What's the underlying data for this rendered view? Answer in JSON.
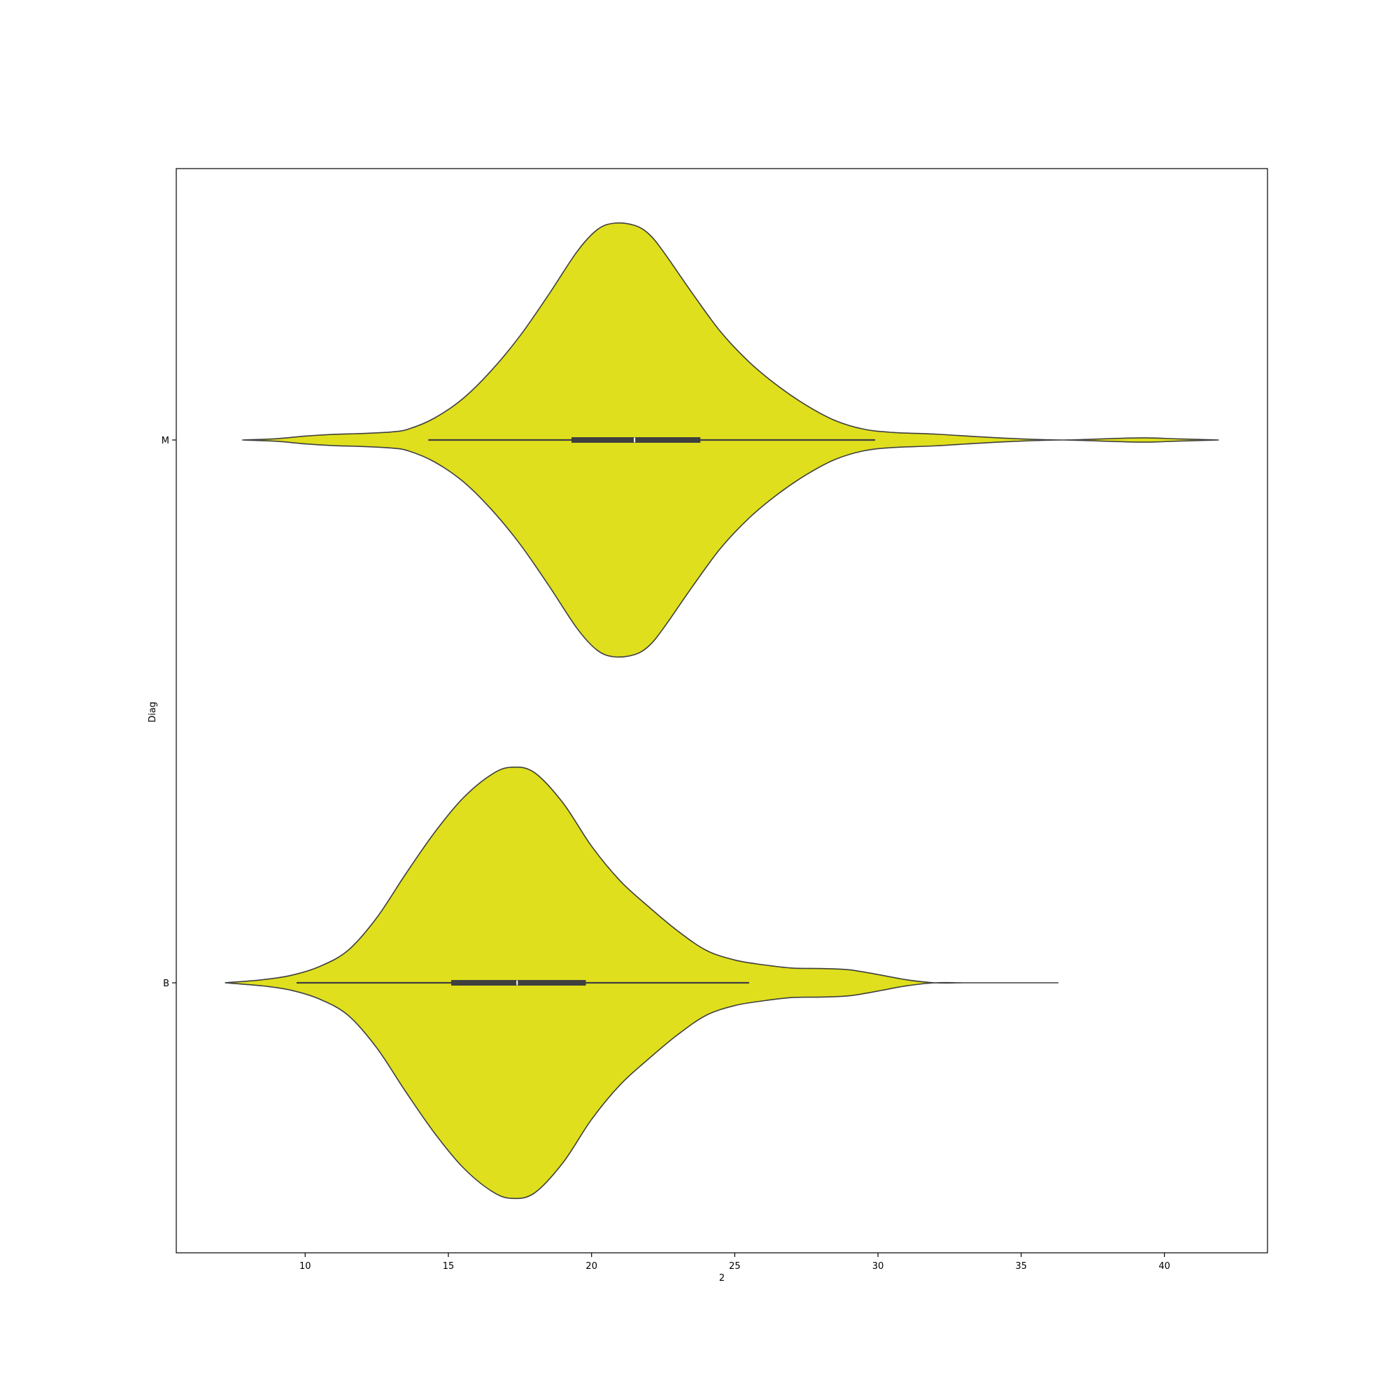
{
  "chart_data": {
    "type": "violin",
    "orientation": "horizontal",
    "title": "",
    "xlabel": "2",
    "ylabel": "Diag",
    "xlim": [
      5.5,
      43.6
    ],
    "x_ticks": [
      10,
      15,
      20,
      25,
      30,
      35,
      40
    ],
    "x_tick_labels": [
      "10",
      "15",
      "20",
      "25",
      "30",
      "35",
      "40"
    ],
    "categories": [
      "M",
      "B"
    ],
    "grid": false,
    "fill_color": "#dfdf1e",
    "edge_color": "#3f3f3f",
    "violins": [
      {
        "category": "M",
        "range": [
          7.8,
          41.9
        ],
        "density": [
          [
            7.8,
            0.0
          ],
          [
            9.0,
            0.006
          ],
          [
            10.0,
            0.018
          ],
          [
            11.0,
            0.026
          ],
          [
            12.0,
            0.03
          ],
          [
            13.0,
            0.037
          ],
          [
            13.6,
            0.05
          ],
          [
            14.5,
            0.1
          ],
          [
            15.5,
            0.19
          ],
          [
            16.5,
            0.32
          ],
          [
            17.5,
            0.48
          ],
          [
            18.5,
            0.67
          ],
          [
            19.5,
            0.87
          ],
          [
            20.2,
            0.97
          ],
          [
            20.8,
            1.0
          ],
          [
            21.5,
            0.99
          ],
          [
            22.0,
            0.95
          ],
          [
            22.5,
            0.87
          ],
          [
            23.5,
            0.68
          ],
          [
            24.5,
            0.5
          ],
          [
            25.5,
            0.36
          ],
          [
            26.5,
            0.25
          ],
          [
            27.5,
            0.16
          ],
          [
            28.5,
            0.09
          ],
          [
            29.5,
            0.05
          ],
          [
            30.5,
            0.035
          ],
          [
            32.0,
            0.027
          ],
          [
            33.5,
            0.015
          ],
          [
            35.0,
            0.005
          ],
          [
            36.5,
            0.0
          ],
          [
            38.0,
            0.006
          ],
          [
            39.3,
            0.01
          ],
          [
            40.5,
            0.005
          ],
          [
            41.9,
            0.0
          ]
        ],
        "whisker": [
          14.3,
          29.9
        ],
        "q1": 19.3,
        "median": 21.5,
        "q3": 23.8
      },
      {
        "category": "B",
        "range": [
          7.2,
          36.3
        ],
        "density": [
          [
            7.2,
            0.0
          ],
          [
            8.5,
            0.014
          ],
          [
            9.5,
            0.034
          ],
          [
            10.5,
            0.075
          ],
          [
            11.5,
            0.15
          ],
          [
            12.5,
            0.3
          ],
          [
            13.5,
            0.5
          ],
          [
            14.5,
            0.69
          ],
          [
            15.5,
            0.85
          ],
          [
            16.5,
            0.96
          ],
          [
            17.2,
            0.994
          ],
          [
            18.0,
            0.97
          ],
          [
            19.0,
            0.83
          ],
          [
            20.0,
            0.63
          ],
          [
            21.0,
            0.47
          ],
          [
            22.0,
            0.35
          ],
          [
            23.0,
            0.24
          ],
          [
            24.0,
            0.15
          ],
          [
            25.0,
            0.105
          ],
          [
            26.0,
            0.083
          ],
          [
            27.0,
            0.068
          ],
          [
            28.0,
            0.066
          ],
          [
            29.0,
            0.06
          ],
          [
            30.0,
            0.038
          ],
          [
            31.0,
            0.014
          ],
          [
            32.0,
            0.0
          ],
          [
            33.0,
            0.0
          ],
          [
            34.5,
            0.0
          ],
          [
            36.3,
            0.0
          ]
        ],
        "whisker": [
          9.7,
          25.5
        ],
        "q1": 15.1,
        "median": 17.4,
        "q3": 19.8
      }
    ]
  }
}
